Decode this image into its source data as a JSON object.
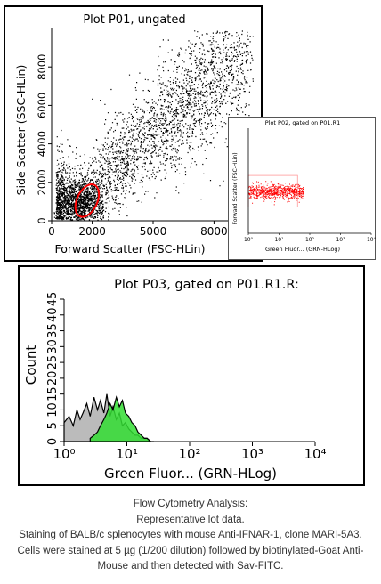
{
  "chart_data": [
    {
      "type": "scatter",
      "title": "Plot P01, ungated",
      "xlabel": "Forward Scatter (FSC-HLin)",
      "ylabel": "Side Scatter (SSC-HLin)",
      "xlim": [
        0,
        10000
      ],
      "ylim": [
        0,
        10000
      ],
      "x_ticks": [
        "0",
        "2000",
        "5000",
        "8000"
      ],
      "x_tick_values": [
        0,
        2000,
        5000,
        8000
      ],
      "y_ticks": [
        "0",
        "2000",
        "4000",
        "6000",
        "8000"
      ],
      "y_tick_values": [
        0,
        2000,
        4000,
        6000,
        8000
      ],
      "gate_ellipse": {
        "cx": 1750,
        "cy": 1050,
        "rx": 500,
        "ry": 900,
        "color": "#ff0000"
      },
      "point_color": "#000000"
    },
    {
      "type": "scatter",
      "title": "Plot P02, gated on P01.R1",
      "xlabel": "Green Fluor... (GRN-HLog)",
      "ylabel": "Forward Scatter (FSC-HLin)",
      "x_scale": "log",
      "xlim": [
        1,
        10000
      ],
      "x_ticks": [
        "10⁰",
        "10¹",
        "10²",
        "10³",
        "10⁴"
      ],
      "point_color": "#ff0000",
      "gate_box": {
        "x": [
          1,
          40
        ],
        "y": [
          0.25,
          0.55
        ]
      }
    },
    {
      "type": "histogram",
      "title": "Plot P03, gated on P01.R1.R:",
      "xlabel": "Green Fluor... (GRN-HLog)",
      "ylabel": "Count",
      "x_scale": "log",
      "xlim": [
        1,
        10000
      ],
      "ylim": [
        0,
        45
      ],
      "x_ticks": [
        "10⁰",
        "10¹",
        "10²",
        "10³",
        "10⁴"
      ],
      "y_ticks": [
        "0",
        "5",
        "10",
        "15",
        "20",
        "25",
        "30",
        "35",
        "40",
        "45"
      ],
      "series": [
        {
          "color": "#aaaaaa",
          "x": [
            1.0,
            1.2,
            1.4,
            1.6,
            1.8,
            2.0,
            2.3,
            2.6,
            3.0,
            3.4,
            3.8,
            4.3,
            4.8,
            5.4,
            6.0,
            6.8,
            7.6,
            8.5,
            9.5,
            10.7,
            12.0,
            13.5,
            15.0,
            17.0,
            19.0,
            21.0,
            24.0,
            27.0
          ],
          "values": [
            6,
            8,
            5,
            10,
            7,
            9,
            12,
            8,
            14,
            10,
            13,
            9,
            15,
            8,
            11,
            7,
            9,
            5,
            6,
            4,
            3,
            2,
            2,
            1,
            1,
            1,
            0,
            0
          ]
        },
        {
          "color": "#33dd33",
          "x": [
            2.6,
            3.0,
            3.4,
            3.8,
            4.3,
            4.8,
            5.4,
            6.0,
            6.8,
            7.6,
            8.5,
            9.5,
            10.7,
            12.0,
            13.5,
            15.0,
            17.0,
            19.0,
            21.0,
            24.0
          ],
          "values": [
            1,
            2,
            3,
            5,
            7,
            9,
            12,
            10,
            14,
            11,
            13,
            9,
            8,
            6,
            5,
            3,
            2,
            1,
            1,
            0
          ]
        }
      ]
    }
  ],
  "caption": {
    "lines": [
      "Flow Cytometry Analysis:",
      "Representative lot data.",
      "Staining of BALB/c splenocytes with mouse Anti-IFNAR-1, clone MARI-5A3.",
      "Cells were stained at 5 µg (1/200 dilution) followed by biotinylated-Goat Anti-",
      "Mouse and then detected with Sav-FITC."
    ]
  }
}
